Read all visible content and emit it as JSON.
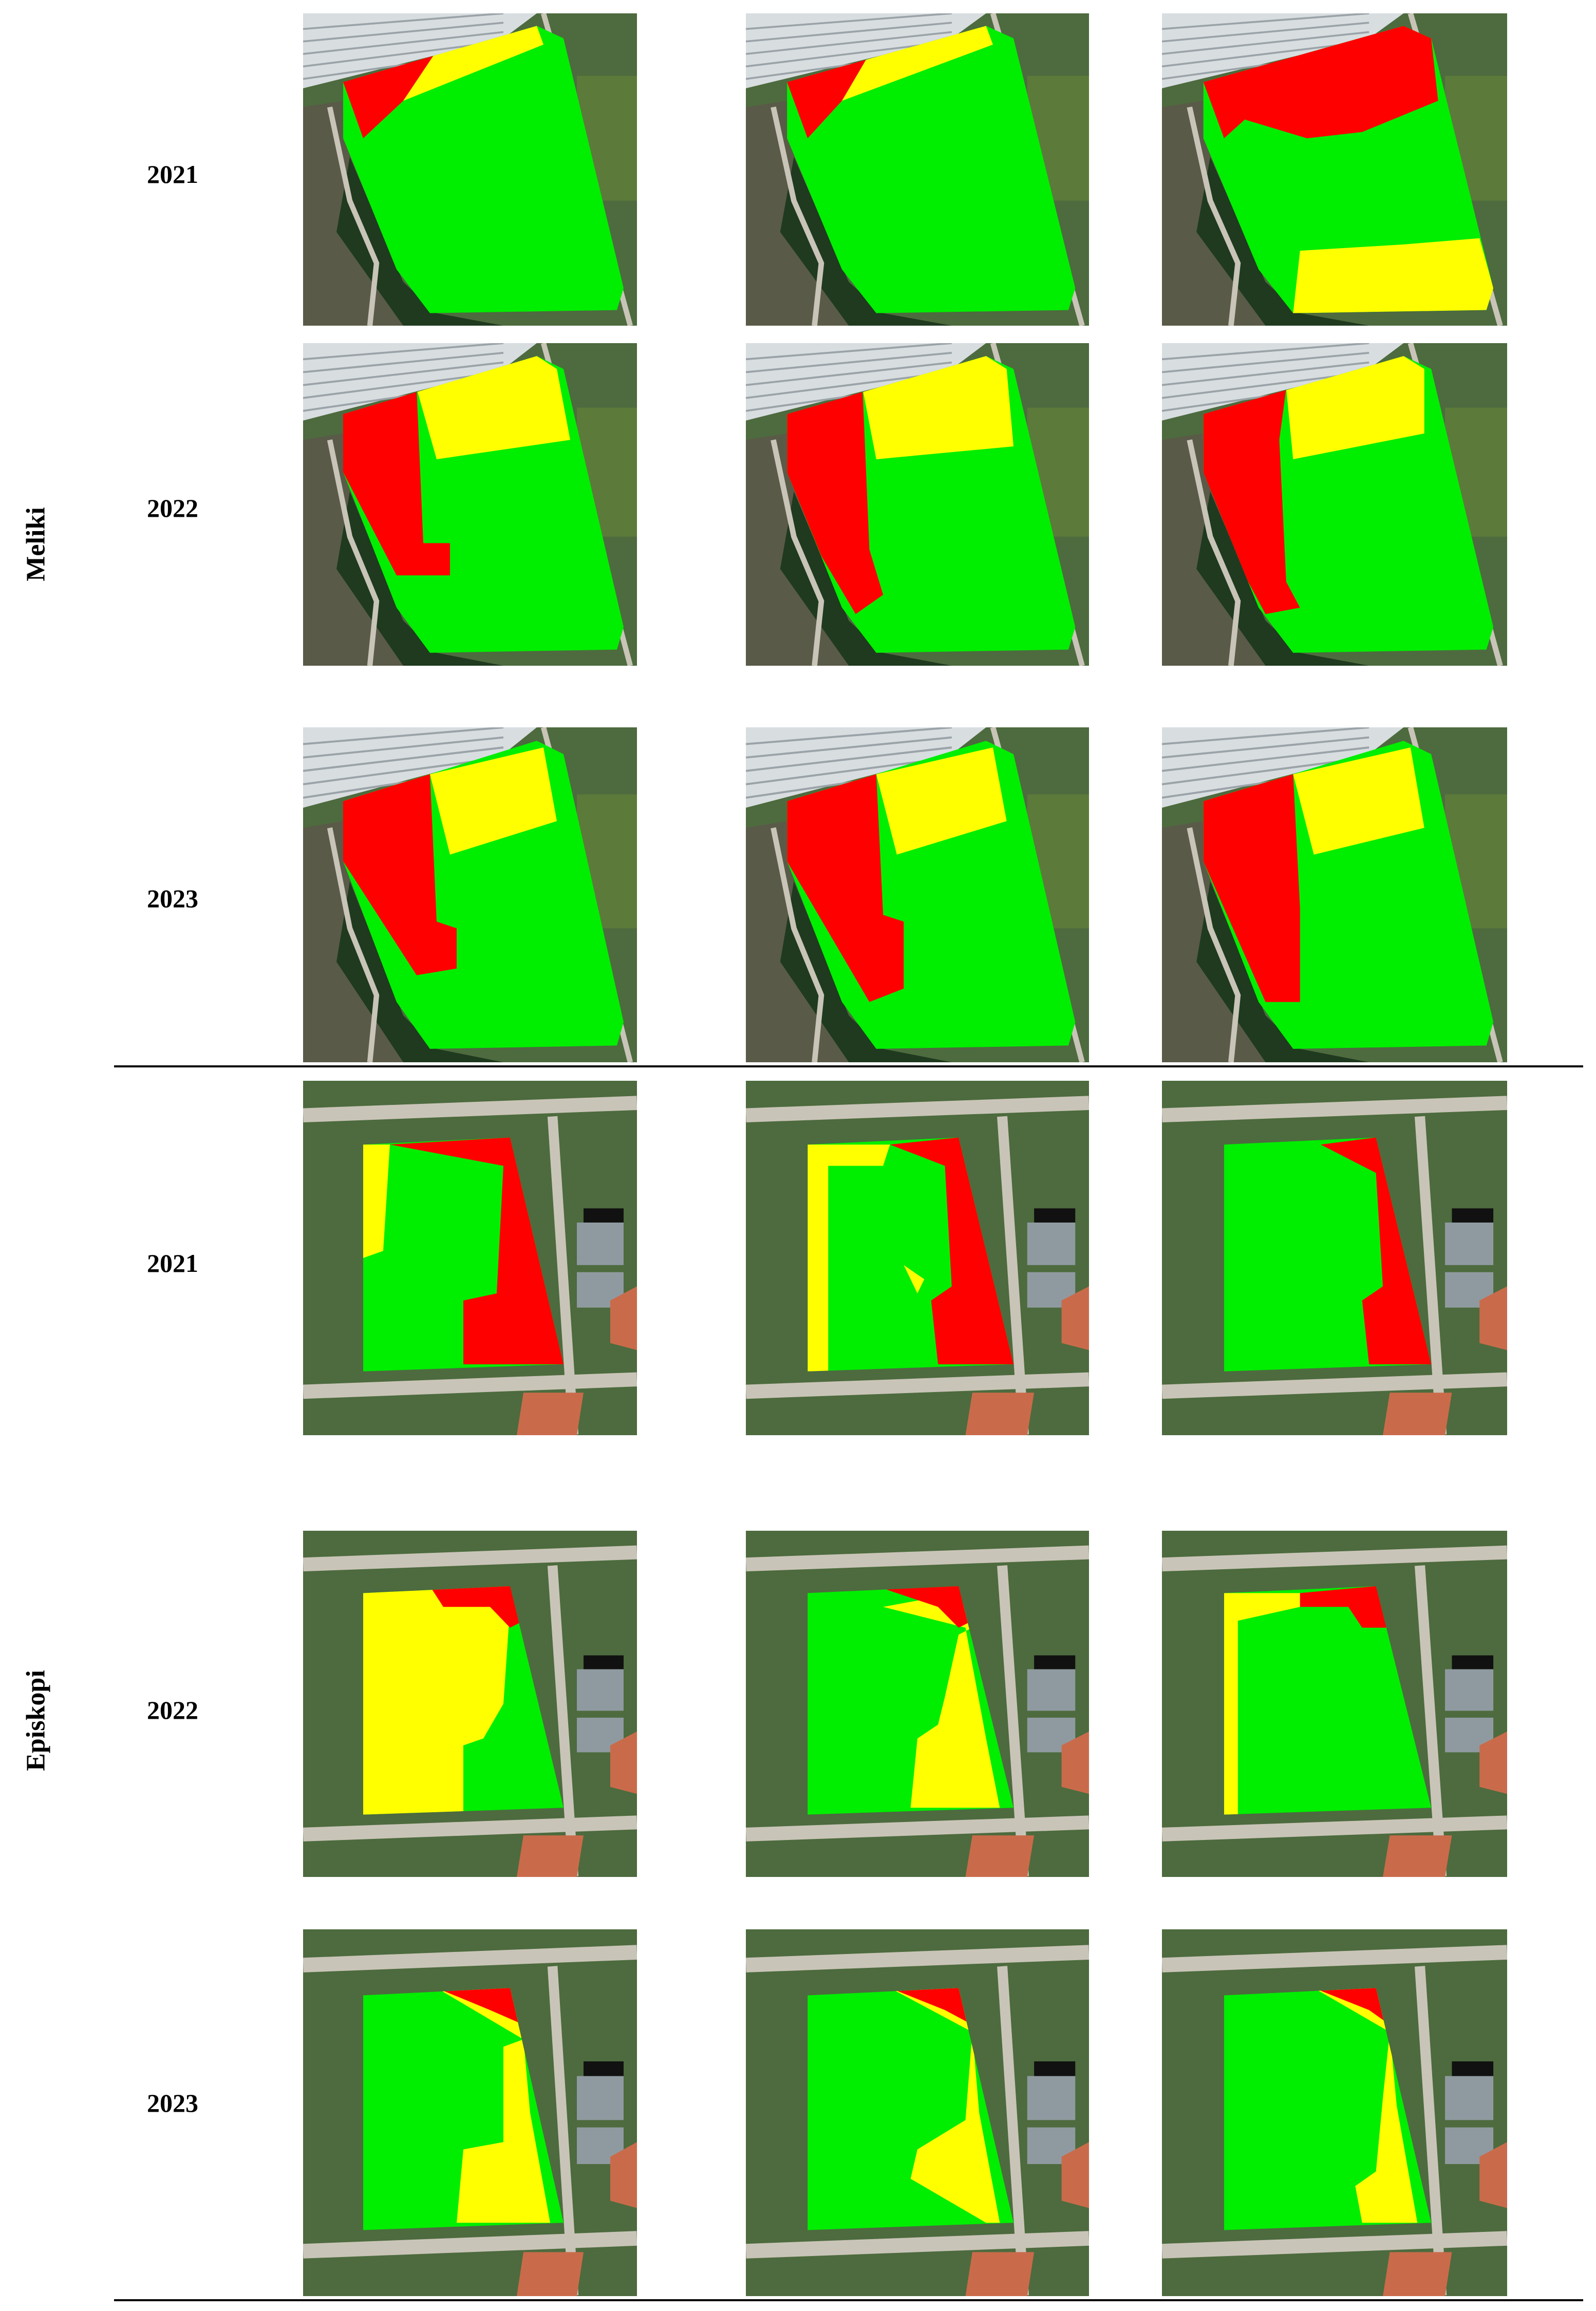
{
  "figure": {
    "palette": {
      "low": "#ff0000",
      "medium": "#ffff00",
      "high": "#00ee00",
      "farmland": "#4d6b3e",
      "road": "#c9c4b8",
      "greenhouse": "#d8dde0",
      "trees": "#1f3a1f",
      "roof": "#c96b4a",
      "shed": "#8f9aa0"
    },
    "sites": [
      {
        "name": "Meliki",
        "rows": [
          {
            "year": "2021"
          },
          {
            "year": "2022"
          },
          {
            "year": "2023"
          }
        ]
      },
      {
        "name": "Episkopi",
        "rows": [
          {
            "year": "2021"
          },
          {
            "year": "2022"
          },
          {
            "year": "2023"
          }
        ]
      }
    ]
  }
}
